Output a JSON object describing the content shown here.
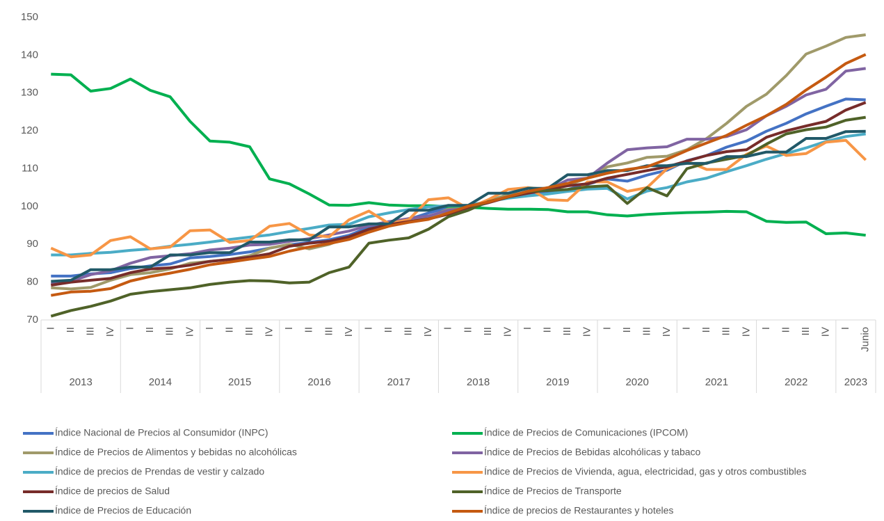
{
  "chart_data": {
    "type": "line",
    "groups": [
      {
        "name": "2013",
        "categories": [
          "I",
          "II",
          "III",
          "IV"
        ]
      },
      {
        "name": "2014",
        "categories": [
          "I",
          "II",
          "III",
          "IV"
        ]
      },
      {
        "name": "2015",
        "categories": [
          "I",
          "II",
          "III",
          "IV"
        ]
      },
      {
        "name": "2016",
        "categories": [
          "I",
          "II",
          "III",
          "IV"
        ]
      },
      {
        "name": "2017",
        "categories": [
          "I",
          "II",
          "III",
          "IV"
        ]
      },
      {
        "name": "2018",
        "categories": [
          "I",
          "II",
          "III",
          "IV"
        ]
      },
      {
        "name": "2019",
        "categories": [
          "I",
          "II",
          "III",
          "IV"
        ]
      },
      {
        "name": "2020",
        "categories": [
          "I",
          "II",
          "III",
          "IV"
        ]
      },
      {
        "name": "2021",
        "categories": [
          "I",
          "II",
          "III",
          "IV"
        ]
      },
      {
        "name": "2022",
        "categories": [
          "I",
          "II",
          "III",
          "IV"
        ]
      },
      {
        "name": "2023",
        "categories": [
          "I",
          "Junio"
        ]
      }
    ],
    "ylim": [
      70,
      150
    ],
    "yticks": [
      70,
      80,
      90,
      100,
      110,
      120,
      130,
      140,
      150
    ],
    "grid": false,
    "series": [
      {
        "name": "Índice Nacional de Precios al Consumidor (INPC)",
        "color": "#4472c4",
        "values": [
          81.6,
          81.6,
          82.2,
          82.5,
          83.6,
          84.3,
          84.8,
          86.4,
          86.8,
          87.3,
          88,
          89,
          89.9,
          90.5,
          91.2,
          92.4,
          94.5,
          95.3,
          96.6,
          98.3,
          99.7,
          99.9,
          101.3,
          102.7,
          103.4,
          103.7,
          104.5,
          105.9,
          107.3,
          106.7,
          108.3,
          109.6,
          112.1,
          113.5,
          115.7,
          117.3,
          119.9,
          122,
          124.5,
          126.5,
          128.4,
          128.2
        ]
      },
      {
        "name": "Índice de Precios de Comunicaciones (IPCOM)",
        "color": "#00b050",
        "values": [
          135,
          134.8,
          130.5,
          131.2,
          133.7,
          130.7,
          129,
          122.5,
          117.3,
          117,
          115.8,
          107.3,
          106,
          103.3,
          100.4,
          100.3,
          101,
          100.4,
          100.2,
          100.2,
          100,
          99.8,
          99.5,
          99.3,
          99.3,
          99.2,
          98.6,
          98.6,
          97.8,
          97.5,
          97.9,
          98.2,
          98.4,
          98.5,
          98.7,
          98.6,
          96.1,
          95.8,
          95.9,
          92.8,
          93,
          92.4
        ]
      },
      {
        "name": "Índice de Precios de Alimentos y bebidas no alcohólicas",
        "color": "#a09a6a",
        "values": [
          78.5,
          78.2,
          78.6,
          80.5,
          82,
          82.5,
          83.5,
          85,
          85.5,
          86,
          87,
          89,
          90,
          88.8,
          90,
          92,
          93.8,
          95,
          96.8,
          97.2,
          99.3,
          99.5,
          101.4,
          103.2,
          105,
          104.5,
          105.7,
          107.5,
          110.5,
          111.5,
          113,
          113.3,
          115,
          118,
          122,
          126.5,
          129.7,
          134.6,
          140.3,
          142.4,
          144.7,
          145.4
        ]
      },
      {
        "name": "Índice de Precios de Bebidas alcohólicas y tabaco",
        "color": "#8064a2",
        "values": [
          79.5,
          80.2,
          82,
          83,
          85,
          86.5,
          87,
          87.5,
          88.5,
          89,
          89.8,
          90,
          90.8,
          91.5,
          92.5,
          93.5,
          95,
          96,
          96.8,
          97.5,
          99,
          99.5,
          101,
          102.5,
          104,
          104.5,
          107,
          107.5,
          111.5,
          115,
          115.5,
          115.8,
          117.8,
          117.8,
          118.5,
          120.3,
          124,
          126.5,
          129.5,
          131,
          135.8,
          136.5
        ]
      },
      {
        "name": "Índice de precios de Prendas de vestir y calzado",
        "color": "#4bacc6",
        "values": [
          87.2,
          87.2,
          87.6,
          87.9,
          88.4,
          88.8,
          89.5,
          90,
          90.6,
          91.3,
          91.9,
          92.5,
          93.4,
          94.2,
          95.1,
          95.3,
          97.3,
          98.3,
          99.2,
          99.9,
          100.2,
          100.3,
          101.3,
          102.2,
          102.8,
          103.3,
          104,
          104.6,
          104.8,
          102,
          104.1,
          105,
          106.5,
          107.5,
          109.2,
          110.8,
          112.5,
          114,
          115.5,
          117.2,
          118.5,
          119.2
        ]
      },
      {
        "name": "Índice de Precios de Vivienda, agua, electricidad, gas y otros combustibles",
        "color": "#f79646",
        "values": [
          89,
          86.7,
          87.2,
          91,
          92,
          88.8,
          89.3,
          93.6,
          93.8,
          90.5,
          91,
          94.8,
          95.5,
          92.5,
          92,
          96.5,
          98.8,
          95.5,
          96.5,
          101.8,
          102.3,
          99.5,
          101.8,
          104.5,
          105,
          101.8,
          101.6,
          106.5,
          106.5,
          104,
          105,
          110,
          112,
          109.8,
          109.8,
          113.8,
          116,
          113.5,
          114,
          117,
          117.5,
          112.3
        ]
      },
      {
        "name": "Índice de precios de Salud",
        "color": "#772c2a",
        "values": [
          79.2,
          80,
          80.5,
          81,
          82.5,
          83.5,
          83.8,
          84.5,
          85.5,
          86,
          86.6,
          87.5,
          89.5,
          90.3,
          90.8,
          92,
          94,
          95.2,
          96,
          96.7,
          98,
          99.8,
          101,
          102.5,
          103.5,
          104.5,
          105.5,
          106,
          107.5,
          108.5,
          109.5,
          110.5,
          112,
          113.5,
          114.5,
          115,
          118.3,
          120,
          121.3,
          122.5,
          125.5,
          127.5
        ]
      },
      {
        "name": "Índice de Precios de Transporte",
        "color": "#4f6228",
        "values": [
          71,
          72.5,
          73.6,
          75,
          76.8,
          77.5,
          78,
          78.5,
          79.4,
          80,
          80.4,
          80.3,
          79.8,
          80,
          82.5,
          84,
          90.3,
          91.1,
          91.7,
          94,
          97.3,
          99,
          101.3,
          102.5,
          104,
          104.2,
          104.5,
          105.2,
          105.5,
          100.8,
          105,
          102.8,
          110,
          111.5,
          112.5,
          113.5,
          116.5,
          119.2,
          120.3,
          121,
          122.8,
          123.6
        ]
      },
      {
        "name": "Índice de Precios de Educación",
        "color": "#215968",
        "values": [
          80.2,
          80.5,
          83.3,
          83.3,
          84,
          84,
          87.2,
          87.2,
          87.8,
          87.8,
          90.6,
          90.6,
          91.2,
          91.2,
          94.6,
          94.6,
          95.4,
          95.4,
          99,
          99,
          100.3,
          100.3,
          103.5,
          103.5,
          104.8,
          104.8,
          108.4,
          108.4,
          109.5,
          109.5,
          110.8,
          110.8,
          111.4,
          111.4,
          113.2,
          113.2,
          114.4,
          114.4,
          118,
          118,
          119.8,
          119.9
        ]
      },
      {
        "name": "Índice de precios de Restaurantes y hoteles",
        "color": "#c55a11",
        "values": [
          76.5,
          77.4,
          77.6,
          78.3,
          80.3,
          81.5,
          82.4,
          83.4,
          84.6,
          85.3,
          86.1,
          86.8,
          88.2,
          89.3,
          90.2,
          91.3,
          93.2,
          94.8,
          95.8,
          96.6,
          98.3,
          100.1,
          101.2,
          102.6,
          104,
          105,
          106.1,
          107.5,
          108.8,
          109.8,
          110.5,
          112.5,
          114.8,
          116.8,
          118.8,
          121.5,
          124,
          127,
          130.8,
          134.2,
          137.8,
          140.2
        ]
      }
    ]
  }
}
